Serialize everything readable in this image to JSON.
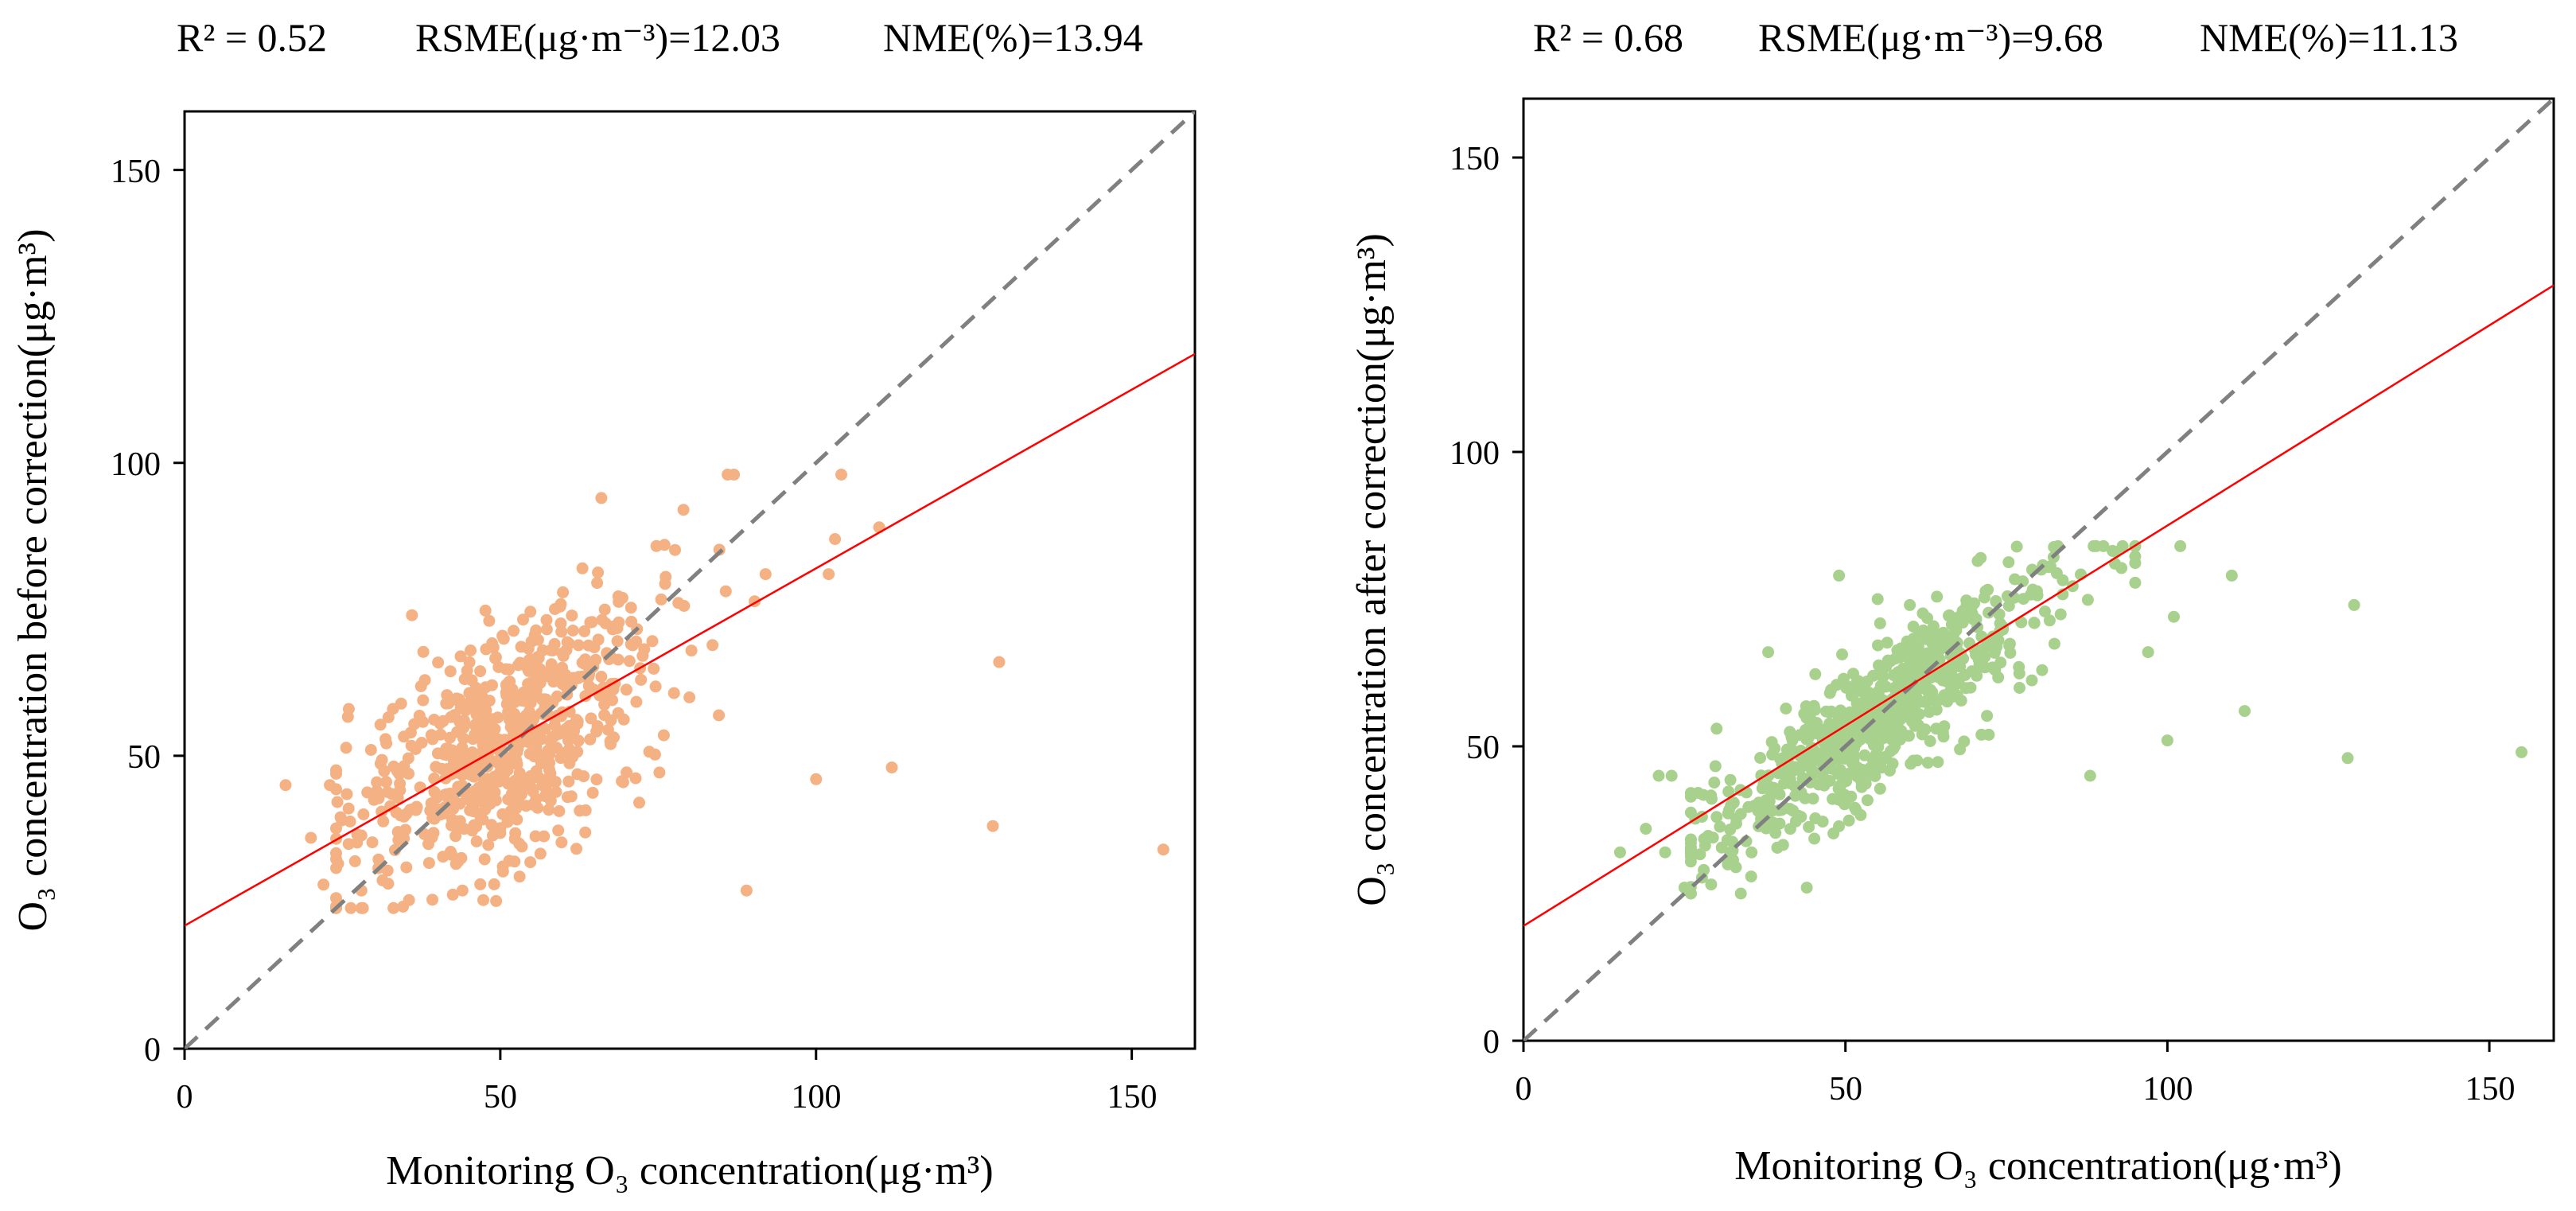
{
  "figure": {
    "panels": [
      {
        "id": "before",
        "stats": {
          "r2": "R² = 0.52",
          "rmse": "RSME(μg·m⁻³)=12.03",
          "nme": "NME(%)=13.94"
        },
        "colors": {
          "points": "#F4B183",
          "fit": "#FF0000",
          "ref": "#808080"
        }
      },
      {
        "id": "after",
        "stats": {
          "r2": "R² = 0.68",
          "rmse": "RSME(μg·m⁻³)=9.68",
          "nme": "NME(%)=11.13"
        },
        "colors": {
          "points": "#A9D18E",
          "fit": "#FF0000",
          "ref": "#808080"
        }
      }
    ]
  },
  "chart_data": [
    {
      "type": "scatter",
      "title": "",
      "xlabel": "Monitoring O₃ concentration(μg·m³)",
      "ylabel": "O₃ concentration before correction(μg·m³)",
      "xlim": [
        0,
        160
      ],
      "ylim": [
        0,
        160
      ],
      "xticks": [
        0,
        50,
        100,
        150
      ],
      "yticks": [
        0,
        50,
        100,
        150
      ],
      "grid": false,
      "r2": 0.52,
      "rmse": 12.03,
      "nme_percent": 13.94,
      "fit_line": {
        "slope": 0.61,
        "intercept": 21.0
      },
      "reference_line": {
        "slope": 1,
        "intercept": 0
      },
      "outliers": [
        [
          16,
          45
        ],
        [
          20,
          36
        ],
        [
          22,
          28
        ],
        [
          23,
          45
        ],
        [
          26,
          58
        ],
        [
          27,
          32
        ],
        [
          28,
          27
        ],
        [
          28,
          24
        ],
        [
          33,
          58
        ],
        [
          36,
          74
        ],
        [
          44,
          27
        ],
        [
          53,
          35
        ],
        [
          63,
          82
        ],
        [
          66,
          94
        ],
        [
          72,
          42
        ],
        [
          76,
          86
        ],
        [
          79,
          92
        ],
        [
          86,
          98
        ],
        [
          87,
          98
        ],
        [
          89,
          27
        ],
        [
          92,
          81
        ],
        [
          100,
          46
        ],
        [
          102,
          81
        ],
        [
          103,
          87
        ],
        [
          104,
          98
        ],
        [
          110,
          89
        ],
        [
          112,
          48
        ],
        [
          128,
          38
        ],
        [
          129,
          66
        ],
        [
          155,
          34
        ]
      ],
      "cluster": {
        "count": 720,
        "x_min": 24,
        "x_max": 100,
        "center_x": 52,
        "sd_x": 12,
        "slope": 0.61,
        "intercept": 21,
        "noise_sd": 9.5,
        "y_min": 24,
        "y_max": 96
      }
    },
    {
      "type": "scatter",
      "title": "",
      "xlabel": "Monitoring O₃ concentration(μg·m³)",
      "ylabel": "O₃ concentration after correction(μg·m³)",
      "xlim": [
        0,
        160
      ],
      "ylim": [
        0,
        160
      ],
      "xticks": [
        0,
        50,
        100,
        150
      ],
      "yticks": [
        0,
        50,
        100,
        150
      ],
      "grid": false,
      "r2": 0.68,
      "rmse": 9.68,
      "nme_percent": 11.13,
      "fit_line": {
        "slope": 0.68,
        "intercept": 19.5
      },
      "reference_line": {
        "slope": 1,
        "intercept": 0
      },
      "outliers": [
        [
          15,
          32
        ],
        [
          19,
          36
        ],
        [
          21,
          45
        ],
        [
          22,
          32
        ],
        [
          23,
          45
        ],
        [
          25,
          26
        ],
        [
          28,
          29
        ],
        [
          30,
          38
        ],
        [
          30,
          53
        ],
        [
          38,
          66
        ],
        [
          44,
          26
        ],
        [
          49,
          79
        ],
        [
          55,
          75
        ],
        [
          60,
          74
        ],
        [
          71,
          82
        ],
        [
          79,
          80
        ],
        [
          83,
          84
        ],
        [
          88,
          45
        ],
        [
          92,
          83
        ],
        [
          97,
          66
        ],
        [
          100,
          51
        ],
        [
          101,
          72
        ],
        [
          102,
          84
        ],
        [
          110,
          79
        ],
        [
          112,
          56
        ],
        [
          128,
          48
        ],
        [
          129,
          74
        ],
        [
          155,
          49
        ]
      ],
      "cluster": {
        "count": 720,
        "x_min": 26,
        "x_max": 95,
        "center_x": 55,
        "sd_x": 13,
        "slope": 0.8,
        "intercept": 11,
        "noise_sd": 6,
        "y_min": 25,
        "y_max": 84
      }
    }
  ]
}
